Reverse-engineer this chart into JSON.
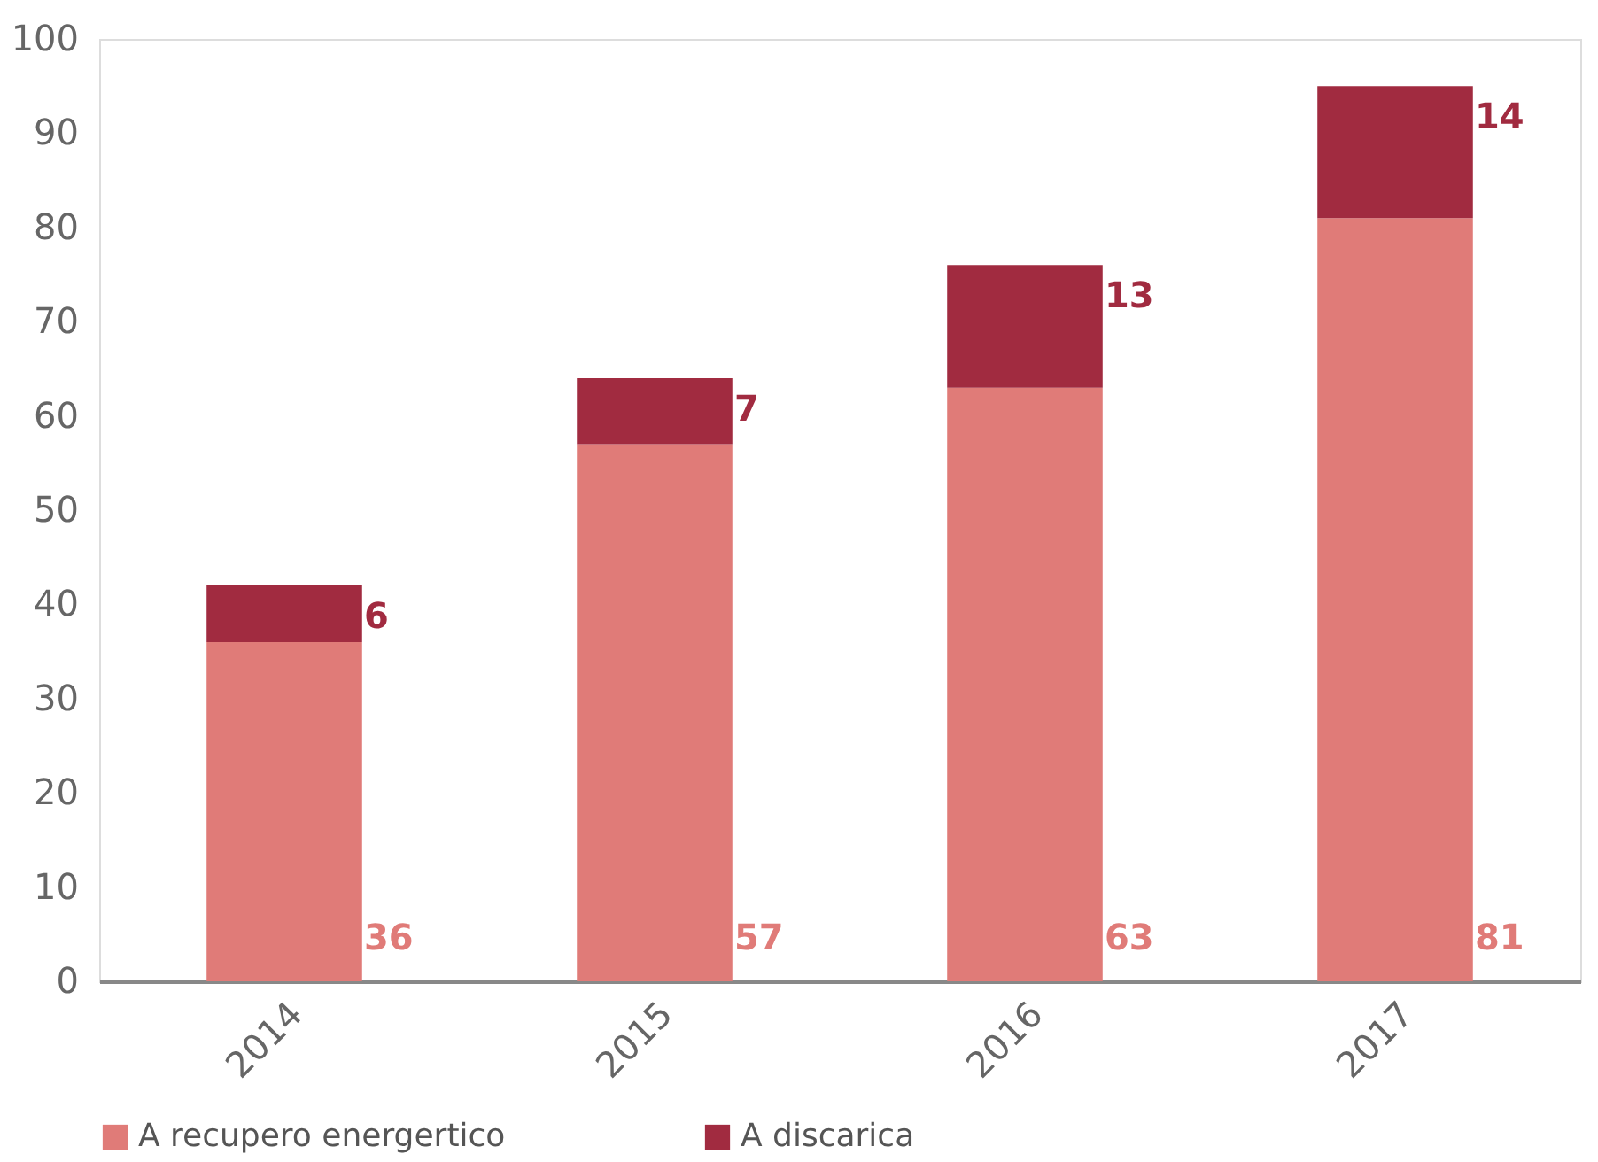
{
  "chart_data": {
    "type": "bar",
    "stacked": true,
    "categories": [
      "2014",
      "2015",
      "2016",
      "2017"
    ],
    "series": [
      {
        "name": "A recupero energertico",
        "color": "#e07b78",
        "values": [
          36,
          57,
          63,
          81
        ]
      },
      {
        "name": "A discarica",
        "color": "#a12b40",
        "values": [
          6,
          7,
          13,
          14
        ]
      }
    ],
    "ylim": [
      0,
      100
    ],
    "yticks": [
      0,
      10,
      20,
      30,
      40,
      50,
      60,
      70,
      80,
      90,
      100
    ],
    "data_labels": true,
    "legend": "bottom",
    "grid": false
  }
}
